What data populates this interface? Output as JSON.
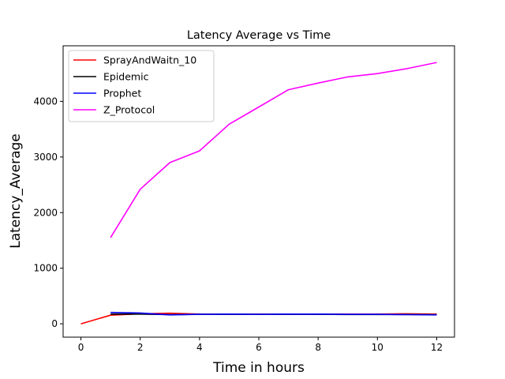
{
  "chart_data": {
    "type": "line",
    "title": "Latency Average vs Time",
    "xlabel": "Time in hours",
    "ylabel": "Latency_Average",
    "xlim": [
      -0.6,
      12.6
    ],
    "ylim": [
      -240,
      5000
    ],
    "xticks": [
      0,
      2,
      4,
      6,
      8,
      10,
      12
    ],
    "yticks": [
      0,
      1000,
      2000,
      3000,
      4000
    ],
    "grid": false,
    "legend_position": "upper-left",
    "series": [
      {
        "name": "SprayAndWaitn_10",
        "color": "#ff0000",
        "x": [
          0,
          1,
          2,
          3,
          4,
          5,
          6,
          7,
          8,
          9,
          10,
          11,
          12
        ],
        "y": [
          0,
          155,
          180,
          190,
          175,
          175,
          175,
          175,
          175,
          175,
          175,
          180,
          175
        ]
      },
      {
        "name": "Epidemic",
        "color": "#000000",
        "x": [
          1,
          2,
          3,
          4,
          5,
          6,
          7,
          8,
          9,
          10,
          11,
          12
        ],
        "y": [
          175,
          175,
          165,
          170,
          170,
          170,
          170,
          170,
          168,
          168,
          168,
          165
        ]
      },
      {
        "name": "Prophet",
        "color": "#0000ff",
        "x": [
          1,
          2,
          3,
          4,
          5,
          6,
          7,
          8,
          9,
          10,
          11,
          12
        ],
        "y": [
          205,
          195,
          160,
          170,
          175,
          170,
          175,
          175,
          170,
          170,
          165,
          160
        ]
      },
      {
        "name": "Z_Protocol",
        "color": "#ff00ff",
        "x": [
          1,
          2,
          3,
          4,
          5,
          6,
          7,
          8,
          9,
          10,
          11,
          12
        ],
        "y": [
          1550,
          2420,
          2900,
          3110,
          3590,
          3900,
          4210,
          4330,
          4440,
          4500,
          4590,
          4700
        ]
      }
    ]
  }
}
